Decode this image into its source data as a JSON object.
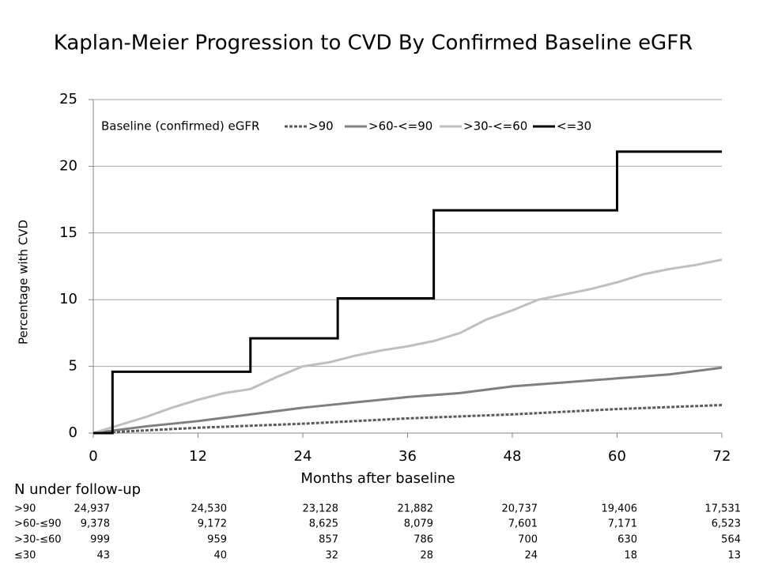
{
  "chart_data": {
    "type": "line",
    "title": "Kaplan-Meier Progression to CVD By Confirmed Baseline eGFR",
    "xlabel": "Months after baseline",
    "ylabel": "Percentage with CVD",
    "legend_title": "Baseline (confirmed) eGFR",
    "xlim": [
      0,
      72
    ],
    "xticks": [
      0,
      12,
      24,
      36,
      48,
      60,
      72
    ],
    "ylim": [
      0,
      25
    ],
    "yticks": [
      0,
      5,
      10,
      15,
      20,
      25
    ],
    "grid": true,
    "series": [
      {
        "name": ">90",
        "color": "#595959",
        "x": [
          0,
          12,
          24,
          36,
          48,
          60,
          72
        ],
        "values": [
          0,
          0.4,
          0.7,
          1.1,
          1.4,
          1.8,
          2.1
        ]
      },
      {
        "name": ">60-<=90",
        "color": "#7f7f7f",
        "x": [
          0,
          6,
          12,
          18,
          24,
          30,
          36,
          42,
          48,
          54,
          60,
          66,
          72
        ],
        "values": [
          0,
          0.5,
          0.9,
          1.4,
          1.9,
          2.3,
          2.7,
          3.0,
          3.5,
          3.8,
          4.1,
          4.4,
          4.9
        ]
      },
      {
        "name": ">30-<=60",
        "color": "#bfbfbf",
        "x": [
          0,
          3,
          6,
          9,
          12,
          15,
          18,
          21,
          24,
          27,
          30,
          33,
          36,
          39,
          42,
          45,
          48,
          51,
          54,
          57,
          60,
          63,
          66,
          69,
          72
        ],
        "values": [
          0,
          0.6,
          1.2,
          1.9,
          2.5,
          3.0,
          3.3,
          4.2,
          5.0,
          5.3,
          5.8,
          6.2,
          6.5,
          6.9,
          7.5,
          8.5,
          9.2,
          10.0,
          10.4,
          10.8,
          11.3,
          11.9,
          12.3,
          12.6,
          13.0
        ]
      },
      {
        "name": "<=30",
        "color": "#000000",
        "x": [
          0,
          2.2,
          2.2,
          18,
          18,
          28,
          28,
          39,
          39,
          60,
          60,
          72
        ],
        "values": [
          0,
          0,
          4.6,
          4.6,
          7.1,
          7.1,
          10.1,
          10.1,
          16.7,
          16.7,
          21.1,
          21.1
        ]
      }
    ]
  },
  "risk_table": {
    "title": "N under follow-up",
    "rows": [
      {
        "label": ">90",
        "values": [
          "24,937",
          "24,530",
          "23,128",
          "21,882",
          "20,737",
          "19,406",
          "17,531"
        ]
      },
      {
        "label": ">60-≤90",
        "values": [
          "9,378",
          "9,172",
          "8,625",
          "8,079",
          "7,601",
          "7,171",
          "6,523"
        ]
      },
      {
        "label": ">30-≤60",
        "values": [
          "999",
          "959",
          "857",
          "786",
          "700",
          "630",
          "564"
        ]
      },
      {
        "label": "≤30",
        "values": [
          "43",
          "40",
          "32",
          "28",
          "24",
          "18",
          "13"
        ]
      }
    ]
  }
}
